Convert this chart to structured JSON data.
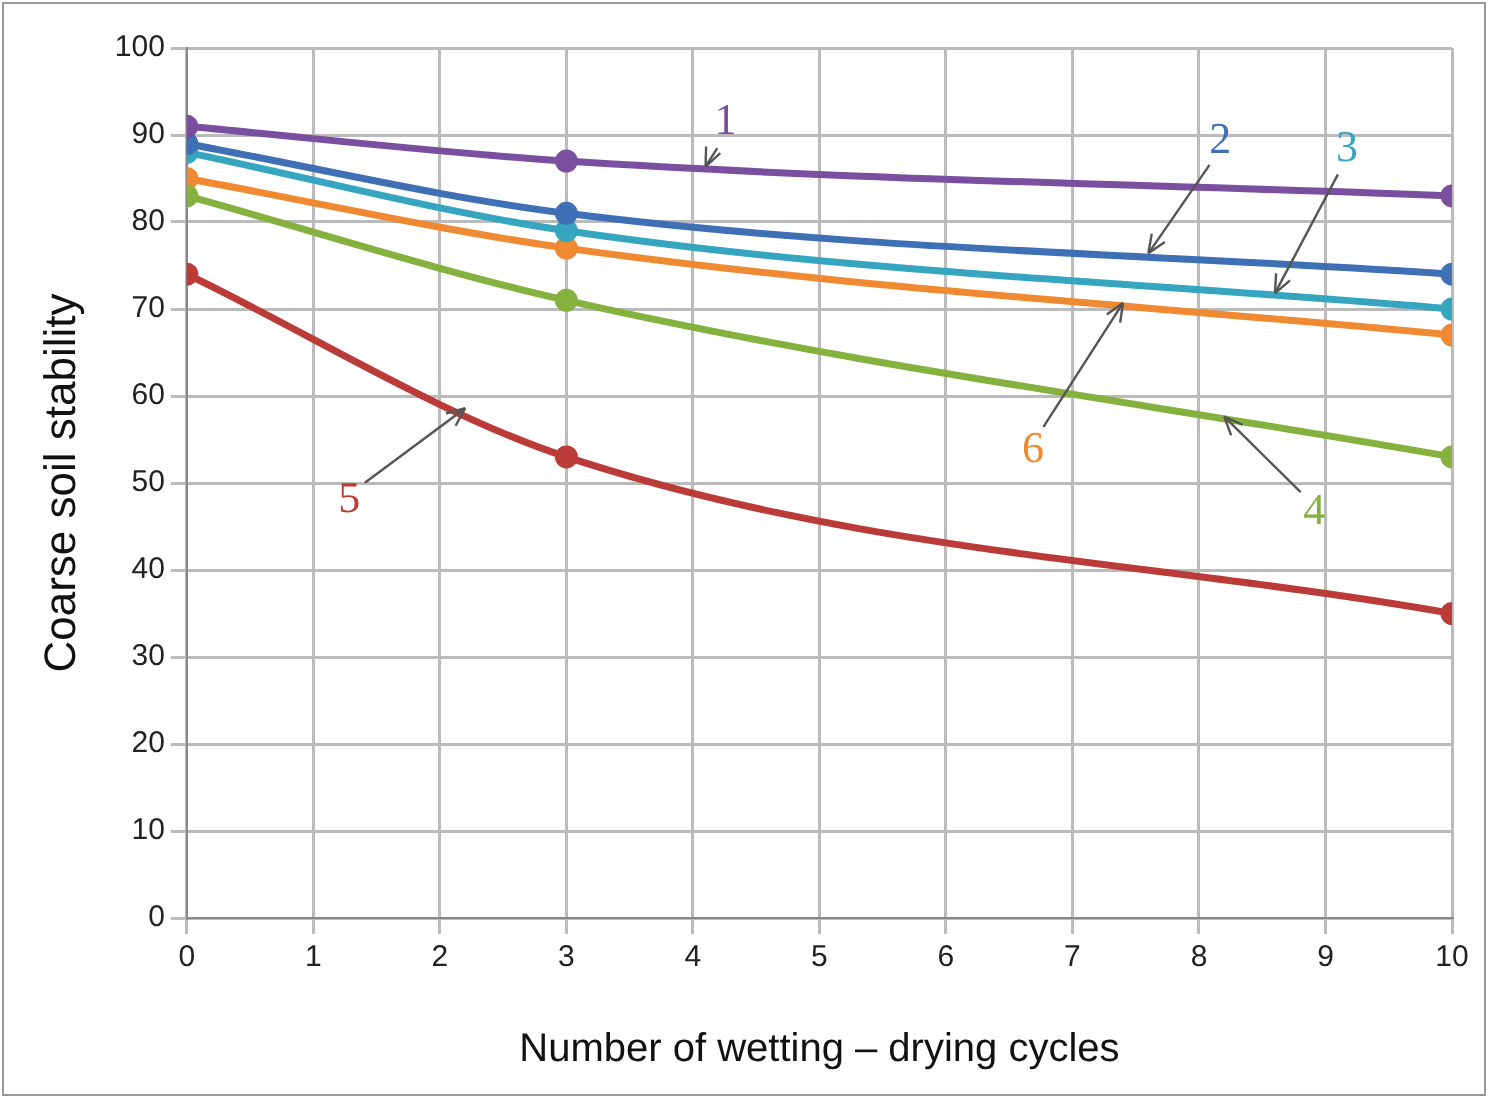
{
  "chart_data": {
    "type": "line",
    "xlabel": "Number of wetting – drying cycles",
    "ylabel": "Coarse soil stability",
    "x": [
      0,
      3,
      10
    ],
    "xlim": [
      0,
      10
    ],
    "xticks": [
      0,
      1,
      2,
      3,
      4,
      5,
      6,
      7,
      8,
      9,
      10
    ],
    "ylim": [
      0,
      100
    ],
    "yticks": [
      0,
      10,
      20,
      30,
      40,
      50,
      60,
      70,
      80,
      90,
      100
    ],
    "grid": true,
    "legend": false,
    "marker": "circle",
    "line_style": "solid",
    "series": [
      {
        "name": "1",
        "color": "#7b4fa0",
        "values": [
          91,
          87,
          83
        ]
      },
      {
        "name": "2",
        "color": "#3f6fb5",
        "values": [
          89,
          81,
          74
        ]
      },
      {
        "name": "3",
        "color": "#36a5c0",
        "values": [
          88,
          79,
          70
        ]
      },
      {
        "name": "4",
        "color": "#85b13e",
        "values": [
          83,
          71,
          53
        ]
      },
      {
        "name": "5",
        "color": "#bb3b38",
        "values": [
          74,
          53,
          35
        ]
      },
      {
        "name": "6",
        "color": "#f08a32",
        "values": [
          85,
          77,
          67
        ]
      }
    ]
  }
}
